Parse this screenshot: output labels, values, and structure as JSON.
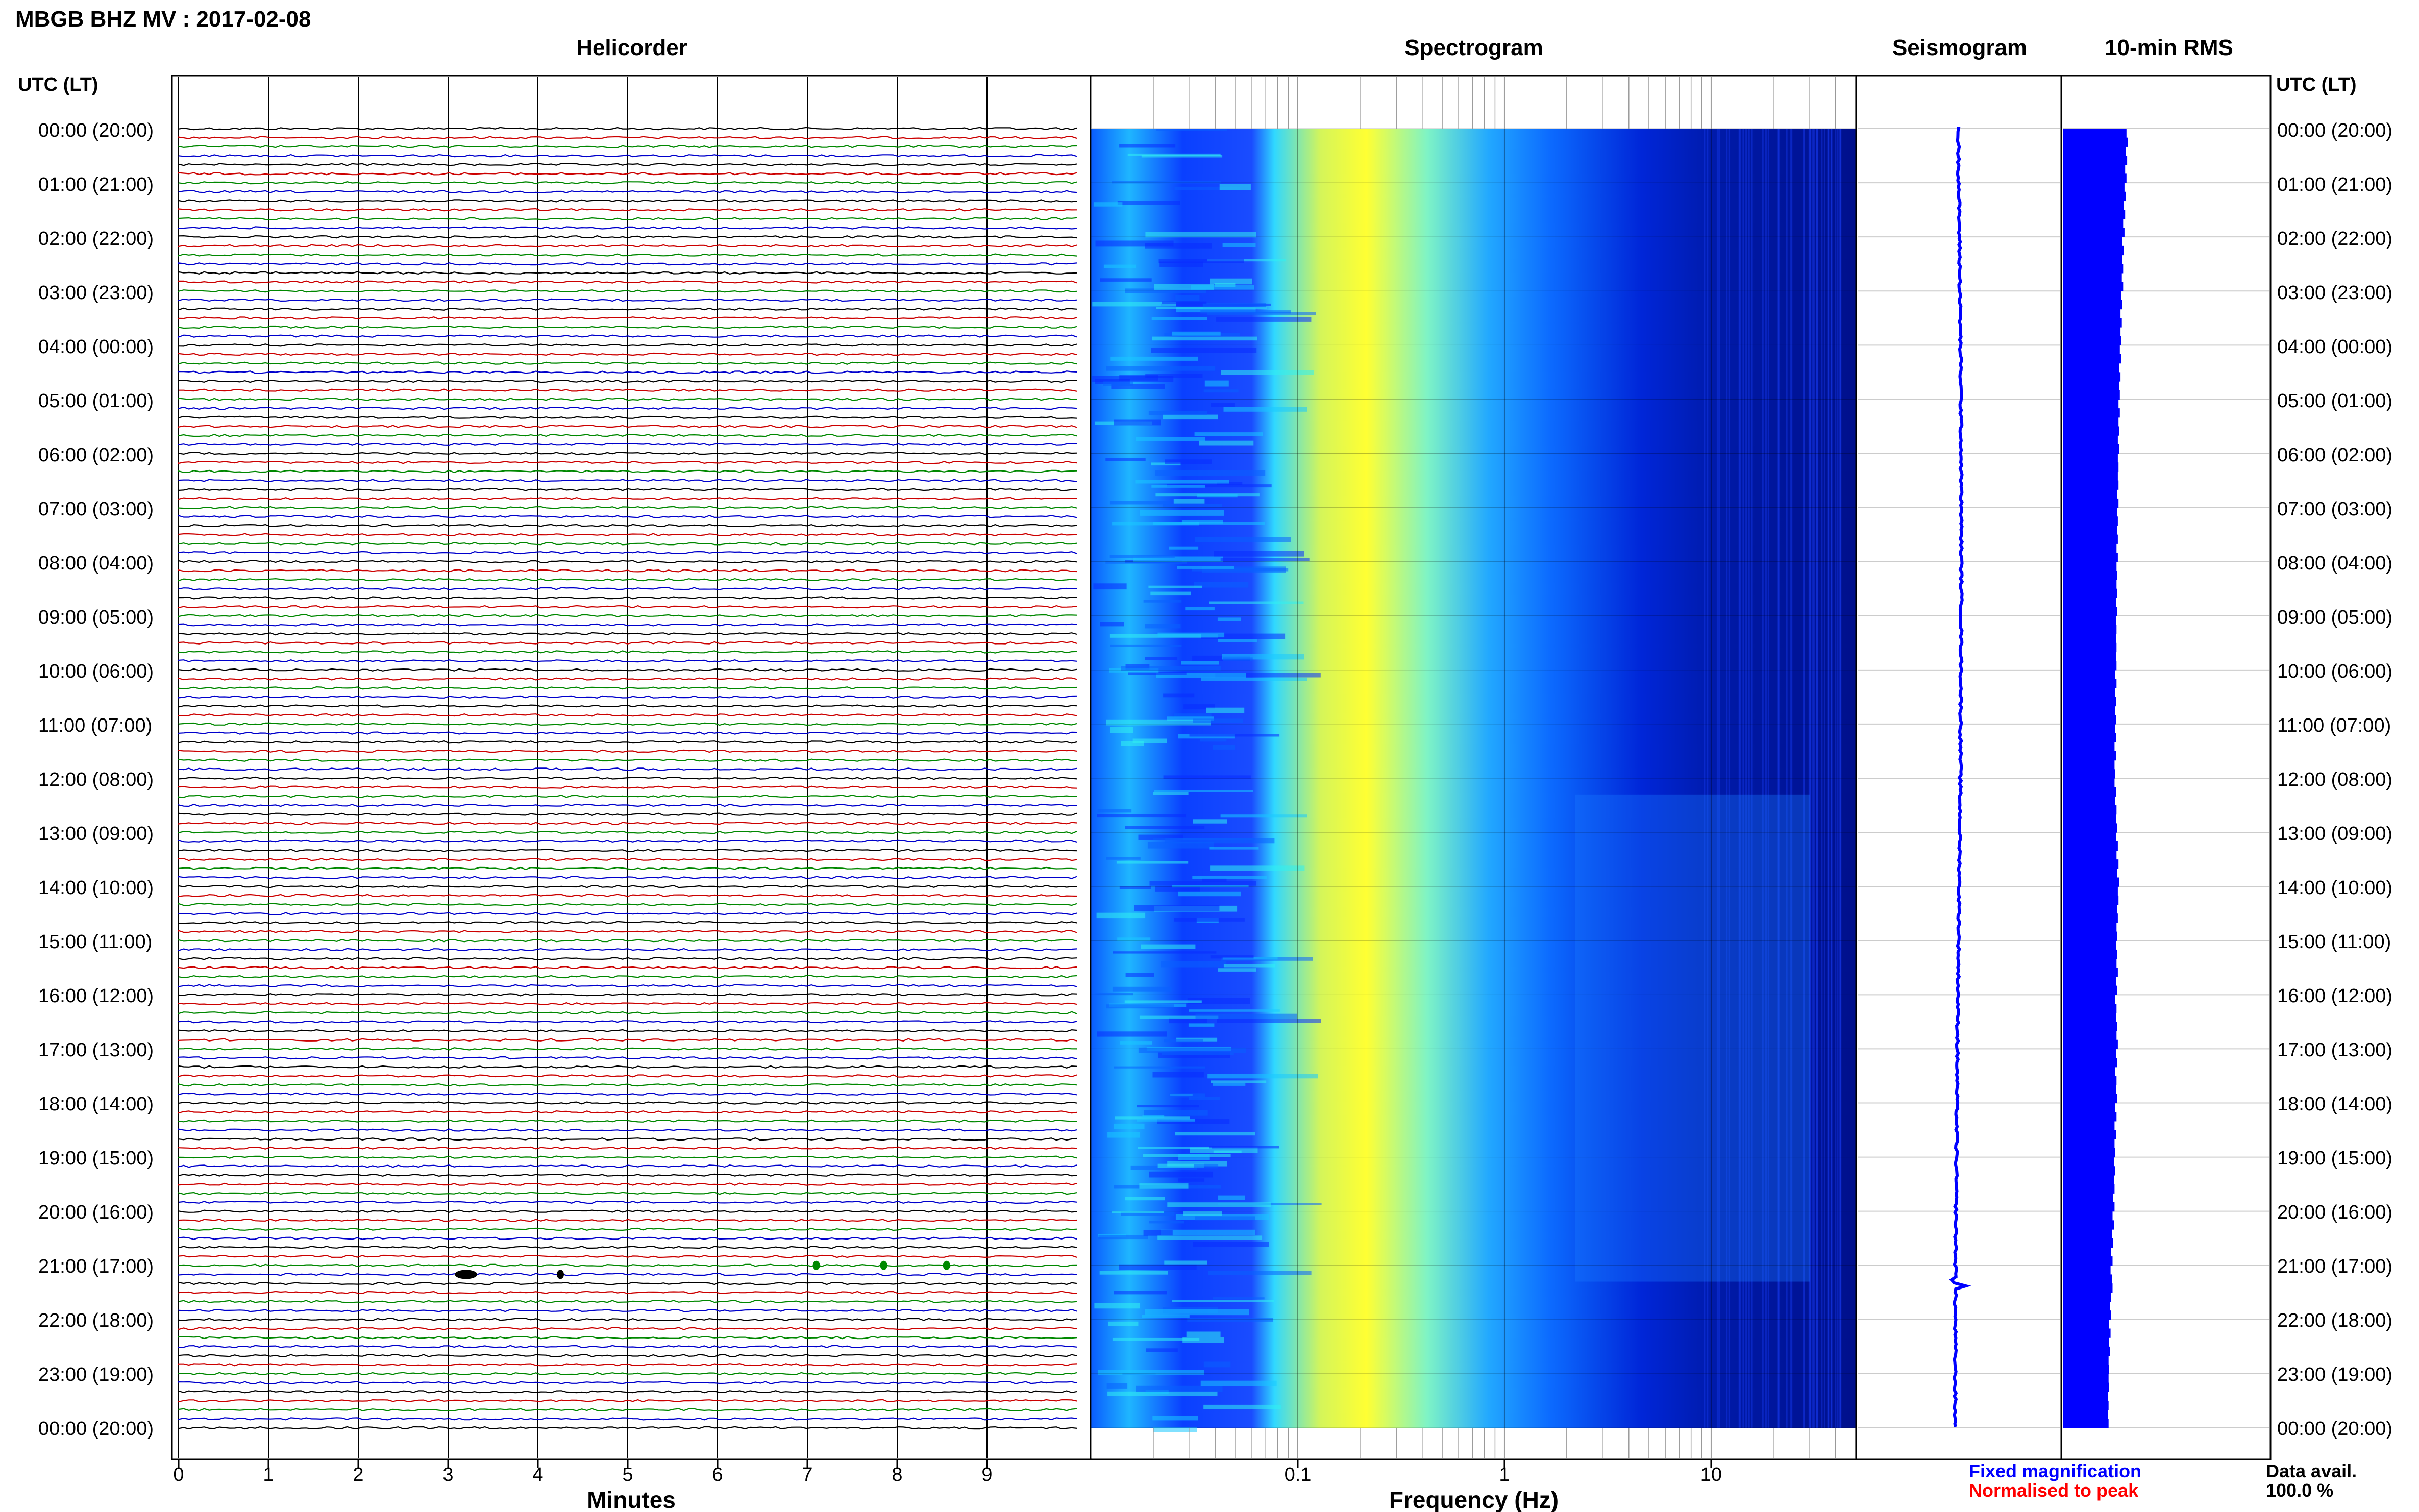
{
  "header": {
    "title": "MBGB BHZ MV : 2017-02-08",
    "tz_label_left": "UTC (LT)",
    "tz_label_right": "UTC (LT)"
  },
  "panels": {
    "helicorder": "Helicorder",
    "spectrogram": "Spectrogram",
    "seismogram": "Seismogram",
    "rms": "10-min RMS"
  },
  "time_labels": [
    "00:00 (20:00)",
    "01:00 (21:00)",
    "02:00 (22:00)",
    "03:00 (23:00)",
    "04:00 (00:00)",
    "05:00 (01:00)",
    "06:00 (02:00)",
    "07:00 (03:00)",
    "08:00 (04:00)",
    "09:00 (05:00)",
    "10:00 (06:00)",
    "11:00 (07:00)",
    "12:00 (08:00)",
    "13:00 (09:00)",
    "14:00 (10:00)",
    "15:00 (11:00)",
    "16:00 (12:00)",
    "17:00 (13:00)",
    "18:00 (14:00)",
    "19:00 (15:00)",
    "20:00 (16:00)",
    "21:00 (17:00)",
    "22:00 (18:00)",
    "23:00 (19:00)",
    "00:00 (20:00)"
  ],
  "legend": {
    "fixed": "Fixed magnification",
    "normalised": "Normalised to peak",
    "fixed_color": "#0000ff",
    "normalised_color": "#ff0000"
  },
  "data_avail": {
    "label": "Data avail.",
    "value": "100.0 %"
  },
  "colors": {
    "trace_cycle": [
      "#000000",
      "#cc0000",
      "#008800",
      "#0000cc"
    ],
    "rms_bar": "#0000ff",
    "seis": "#0000ff"
  },
  "chart_data": [
    {
      "type": "helicorder",
      "title": "Helicorder",
      "xlabel": "Minutes",
      "ticks": [
        "0",
        "1",
        "2",
        "3",
        "4",
        "5",
        "6",
        "7",
        "8",
        "9"
      ],
      "xlim": [
        0,
        10
      ],
      "rows": 144,
      "row_minutes": 10,
      "events": [
        {
          "row": 127,
          "minute": 3.2,
          "color": "#000000"
        },
        {
          "row": 127,
          "minute": 4.25,
          "color": "#000000"
        },
        {
          "row": 126,
          "minute": 7.1,
          "color": "#008800"
        },
        {
          "row": 126,
          "minute": 7.85,
          "color": "#008800"
        },
        {
          "row": 126,
          "minute": 8.55,
          "color": "#008800"
        }
      ]
    },
    {
      "type": "heatmap",
      "title": "Spectrogram",
      "xlabel": "Frequency (Hz)",
      "xscale": "log",
      "xlim": [
        0.01,
        50
      ],
      "ticks": [
        "0.1",
        "1",
        "10"
      ],
      "colormap": [
        "#00008c",
        "#0000ff",
        "#1e90ff",
        "#00e0ff",
        "#c8ff50",
        "#ffff00"
      ]
    },
    {
      "type": "line",
      "title": "Seismogram",
      "event_hour": 21.3
    },
    {
      "type": "bar",
      "title": "10-min RMS",
      "values": [
        0.96,
        0.98,
        0.95,
        0.97,
        0.94,
        0.96,
        0.93,
        0.95,
        0.92,
        0.94,
        0.91,
        0.93,
        0.9,
        0.92,
        0.9,
        0.91,
        0.89,
        0.91,
        0.88,
        0.9,
        0.87,
        0.89,
        0.87,
        0.88,
        0.86,
        0.88,
        0.85,
        0.87,
        0.85,
        0.86,
        0.84,
        0.86,
        0.84,
        0.85,
        0.83,
        0.85,
        0.83,
        0.84,
        0.83,
        0.84,
        0.82,
        0.84,
        0.82,
        0.83,
        0.82,
        0.83,
        0.81,
        0.83,
        0.81,
        0.82,
        0.81,
        0.82,
        0.8,
        0.82,
        0.8,
        0.81,
        0.8,
        0.81,
        0.8,
        0.81,
        0.79,
        0.81,
        0.79,
        0.8,
        0.79,
        0.8,
        0.79,
        0.8,
        0.78,
        0.8,
        0.78,
        0.79,
        0.78,
        0.8,
        0.79,
        0.81,
        0.8,
        0.82,
        0.8,
        0.83,
        0.81,
        0.84,
        0.82,
        0.85,
        0.83,
        0.84,
        0.82,
        0.83,
        0.81,
        0.82,
        0.8,
        0.82,
        0.81,
        0.83,
        0.8,
        0.82,
        0.79,
        0.81,
        0.8,
        0.82,
        0.81,
        0.83,
        0.8,
        0.82,
        0.79,
        0.81,
        0.8,
        0.82,
        0.79,
        0.81,
        0.78,
        0.8,
        0.78,
        0.79,
        0.77,
        0.79,
        0.77,
        0.78,
        0.76,
        0.78,
        0.75,
        0.77,
        0.74,
        0.76,
        0.73,
        0.75,
        0.72,
        0.74,
        0.75,
        0.73,
        0.71,
        0.73,
        0.7,
        0.72,
        0.7,
        0.71,
        0.69,
        0.7,
        0.69,
        0.7,
        0.68,
        0.69,
        0.68,
        0.69
      ]
    }
  ]
}
